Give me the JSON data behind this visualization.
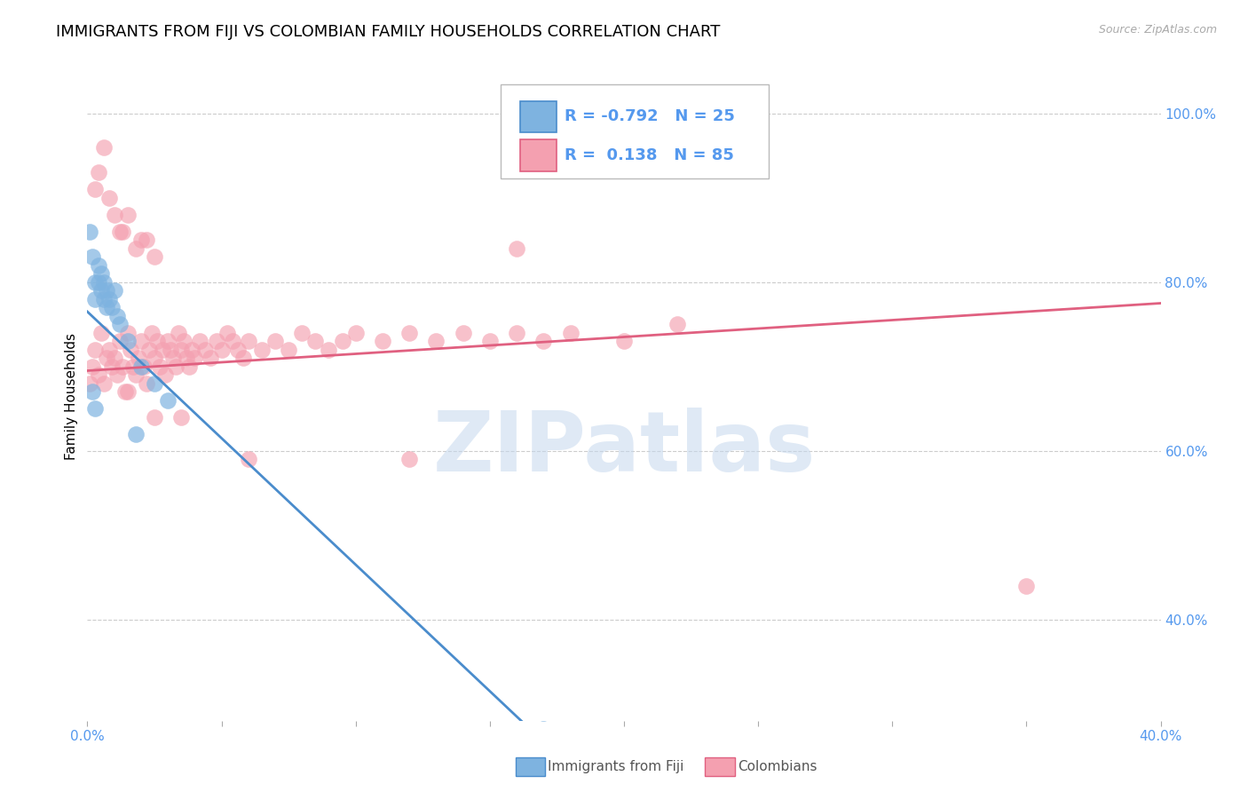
{
  "title": "IMMIGRANTS FROM FIJI VS COLOMBIAN FAMILY HOUSEHOLDS CORRELATION CHART",
  "source": "Source: ZipAtlas.com",
  "ylabel": "Family Households",
  "xlim": [
    0.0,
    0.4
  ],
  "ylim": [
    0.28,
    1.05
  ],
  "fiji_color": "#7EB3E0",
  "colombian_color": "#F4A0B0",
  "fiji_line_color": "#4A8CCC",
  "colombian_line_color": "#E06080",
  "fiji_R": -0.792,
  "fiji_N": 25,
  "colombian_R": 0.138,
  "colombian_N": 85,
  "legend_fiji": "Immigrants from Fiji",
  "legend_colombian": "Colombians",
  "watermark": "ZIPatlas",
  "tick_color": "#5599EE",
  "grid_color": "#CCCCCC",
  "title_fontsize": 13,
  "axis_label_fontsize": 11,
  "tick_fontsize": 11,
  "fiji_scatter": [
    [
      0.002,
      0.83
    ],
    [
      0.003,
      0.8
    ],
    [
      0.003,
      0.78
    ],
    [
      0.004,
      0.82
    ],
    [
      0.004,
      0.8
    ],
    [
      0.005,
      0.81
    ],
    [
      0.005,
      0.79
    ],
    [
      0.006,
      0.8
    ],
    [
      0.006,
      0.78
    ],
    [
      0.007,
      0.79
    ],
    [
      0.007,
      0.77
    ],
    [
      0.008,
      0.78
    ],
    [
      0.009,
      0.77
    ],
    [
      0.01,
      0.79
    ],
    [
      0.011,
      0.76
    ],
    [
      0.012,
      0.75
    ],
    [
      0.015,
      0.73
    ],
    [
      0.018,
      0.62
    ],
    [
      0.02,
      0.7
    ],
    [
      0.025,
      0.68
    ],
    [
      0.03,
      0.66
    ],
    [
      0.001,
      0.86
    ],
    [
      0.002,
      0.67
    ],
    [
      0.17,
      0.27
    ],
    [
      0.003,
      0.65
    ]
  ],
  "colombian_scatter": [
    [
      0.001,
      0.68
    ],
    [
      0.002,
      0.7
    ],
    [
      0.003,
      0.72
    ],
    [
      0.004,
      0.69
    ],
    [
      0.005,
      0.74
    ],
    [
      0.006,
      0.68
    ],
    [
      0.007,
      0.71
    ],
    [
      0.008,
      0.72
    ],
    [
      0.009,
      0.7
    ],
    [
      0.01,
      0.71
    ],
    [
      0.011,
      0.69
    ],
    [
      0.012,
      0.73
    ],
    [
      0.013,
      0.7
    ],
    [
      0.014,
      0.67
    ],
    [
      0.015,
      0.74
    ],
    [
      0.016,
      0.72
    ],
    [
      0.017,
      0.7
    ],
    [
      0.018,
      0.69
    ],
    [
      0.019,
      0.71
    ],
    [
      0.02,
      0.73
    ],
    [
      0.021,
      0.7
    ],
    [
      0.022,
      0.68
    ],
    [
      0.023,
      0.72
    ],
    [
      0.024,
      0.74
    ],
    [
      0.025,
      0.71
    ],
    [
      0.026,
      0.73
    ],
    [
      0.027,
      0.7
    ],
    [
      0.028,
      0.72
    ],
    [
      0.029,
      0.69
    ],
    [
      0.03,
      0.73
    ],
    [
      0.031,
      0.72
    ],
    [
      0.032,
      0.71
    ],
    [
      0.033,
      0.7
    ],
    [
      0.034,
      0.74
    ],
    [
      0.035,
      0.72
    ],
    [
      0.036,
      0.73
    ],
    [
      0.037,
      0.71
    ],
    [
      0.038,
      0.7
    ],
    [
      0.039,
      0.72
    ],
    [
      0.04,
      0.71
    ],
    [
      0.042,
      0.73
    ],
    [
      0.044,
      0.72
    ],
    [
      0.046,
      0.71
    ],
    [
      0.048,
      0.73
    ],
    [
      0.05,
      0.72
    ],
    [
      0.052,
      0.74
    ],
    [
      0.054,
      0.73
    ],
    [
      0.056,
      0.72
    ],
    [
      0.058,
      0.71
    ],
    [
      0.06,
      0.73
    ],
    [
      0.065,
      0.72
    ],
    [
      0.07,
      0.73
    ],
    [
      0.075,
      0.72
    ],
    [
      0.08,
      0.74
    ],
    [
      0.085,
      0.73
    ],
    [
      0.09,
      0.72
    ],
    [
      0.095,
      0.73
    ],
    [
      0.1,
      0.74
    ],
    [
      0.11,
      0.73
    ],
    [
      0.12,
      0.74
    ],
    [
      0.13,
      0.73
    ],
    [
      0.14,
      0.74
    ],
    [
      0.15,
      0.73
    ],
    [
      0.16,
      0.74
    ],
    [
      0.17,
      0.73
    ],
    [
      0.18,
      0.74
    ],
    [
      0.2,
      0.73
    ],
    [
      0.004,
      0.93
    ],
    [
      0.006,
      0.96
    ],
    [
      0.008,
      0.9
    ],
    [
      0.01,
      0.88
    ],
    [
      0.012,
      0.86
    ],
    [
      0.015,
      0.88
    ],
    [
      0.02,
      0.85
    ],
    [
      0.025,
      0.83
    ],
    [
      0.003,
      0.91
    ],
    [
      0.013,
      0.86
    ],
    [
      0.018,
      0.84
    ],
    [
      0.022,
      0.85
    ],
    [
      0.015,
      0.67
    ],
    [
      0.025,
      0.64
    ],
    [
      0.035,
      0.64
    ],
    [
      0.06,
      0.59
    ],
    [
      0.12,
      0.59
    ],
    [
      0.35,
      0.44
    ],
    [
      0.16,
      0.84
    ],
    [
      0.22,
      0.75
    ]
  ],
  "fiji_line": [
    [
      0.0,
      0.765
    ],
    [
      0.175,
      0.24
    ]
  ],
  "colombian_line": [
    [
      0.0,
      0.695
    ],
    [
      0.4,
      0.775
    ]
  ]
}
